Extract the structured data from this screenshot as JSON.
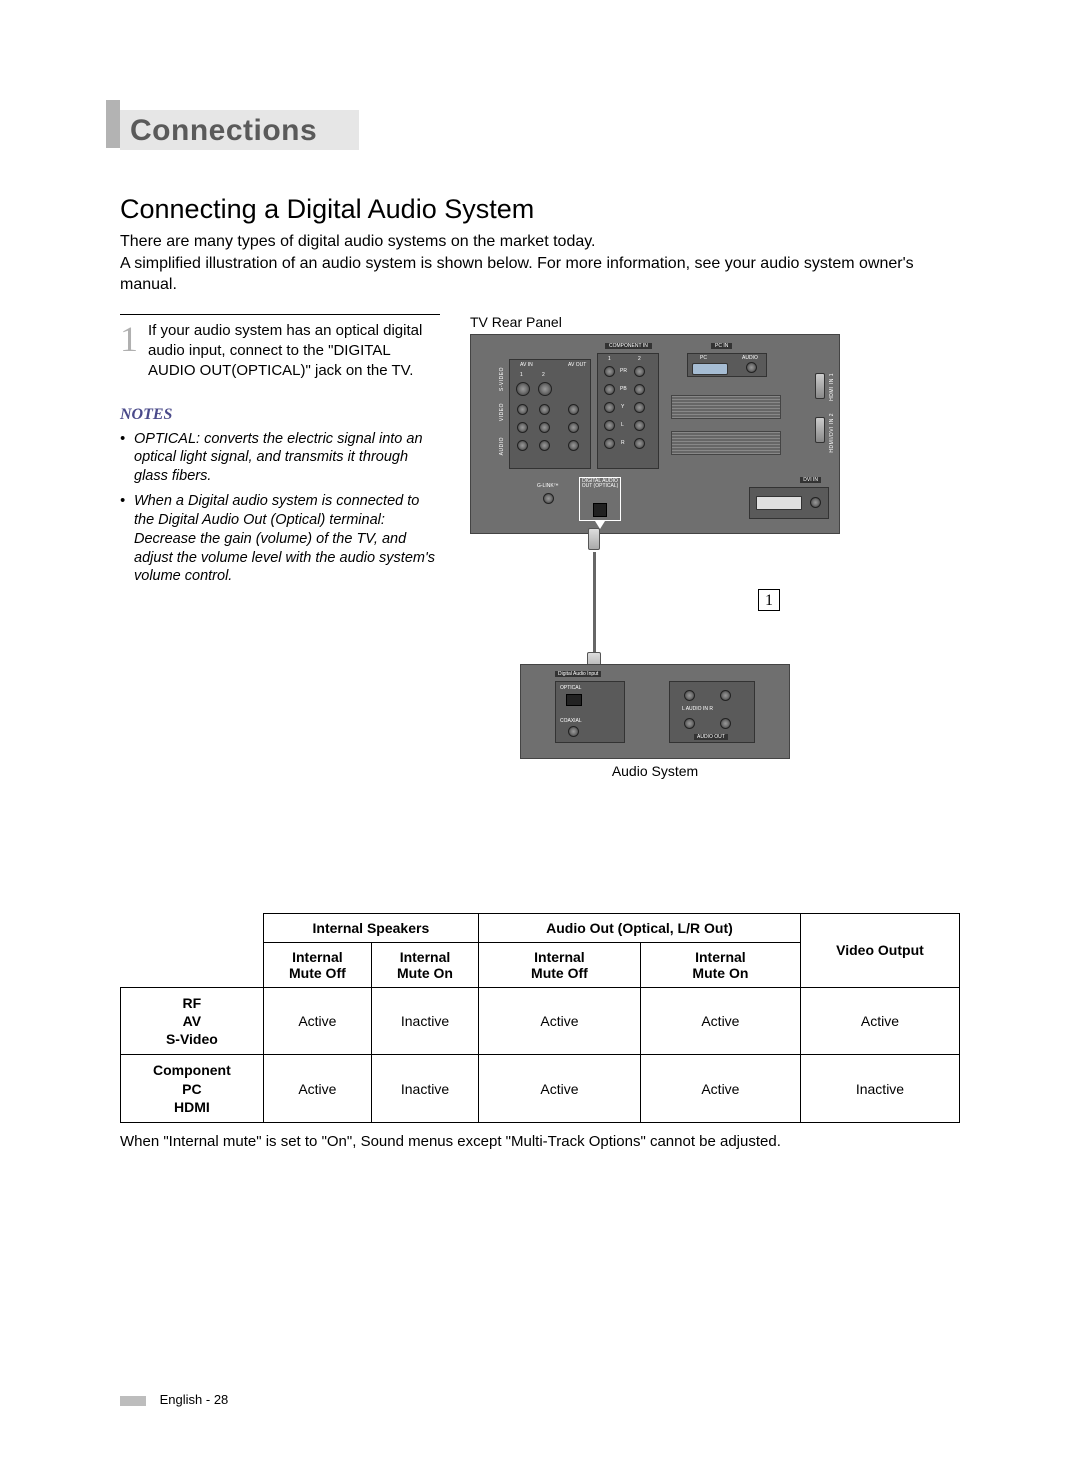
{
  "section_title": "Connections",
  "heading": "Connecting a Digital Audio System",
  "intro": [
    "There are many types of digital audio systems on the market today.",
    "A simplified illustration of an audio system is shown below. For more information, see your audio system owner's manual."
  ],
  "step": {
    "num": "1",
    "text": "If your audio system has an optical digital audio input, connect to the \"DIGITAL AUDIO OUT(OPTICAL)\" jack on the TV."
  },
  "notes_heading": "NOTES",
  "notes": [
    "OPTICAL: converts the electric signal into an optical light signal, and transmits it through glass fibers.",
    "When a Digital audio system is connected to the Digital Audio Out (Optical) terminal: Decrease the gain (volume) of the TV, and adjust the volume level with the audio system's volume control."
  ],
  "captions": {
    "tv_panel": "TV Rear Panel",
    "audio_system": "Audio System"
  },
  "diagram": {
    "callout_num": "1",
    "panel_bg": "#6f6f6f",
    "tv_labels": {
      "component_in": "COMPONENT IN",
      "pc_in": "PC IN",
      "pc": "PC",
      "audio": "AUDIO",
      "av_in": "AV IN",
      "av_out": "AV OUT",
      "one": "1",
      "two": "2",
      "video": "VIDEO",
      "s_video": "S-VIDEO",
      "audio_side": "AUDIO",
      "l": "L",
      "r": "R",
      "pb": "PB",
      "pr": "PR",
      "y": "Y",
      "glink": "G-LINK™",
      "digital_audio_out": "DIGITAL AUDIO OUT (OPTICAL)",
      "hdmi1": "HDMI IN 1",
      "hdmi2": "HDMI/DVI IN 2",
      "dvi_in": "DVI IN"
    },
    "as_labels": {
      "dai": "Digital Audio Input",
      "optical": "OPTICAL",
      "coaxial": "COAXIAL",
      "l_audio_r": "L  AUDIO IN  R",
      "audio_out": "AUDIO OUT"
    }
  },
  "table": {
    "group1": "Internal Speakers",
    "group2": "Audio Out (Optical, L/R Out)",
    "col_video": "Video Output",
    "sub": {
      "mute_off": "Internal Mute Off",
      "mute_on": "Internal Mute On"
    },
    "rows": [
      {
        "label": "RF\nAV\nS-Video",
        "c1": "Active",
        "c2": "Inactive",
        "c3": "Active",
        "c4": "Active",
        "c5": "Active"
      },
      {
        "label": "Component\nPC\nHDMI",
        "c1": "Active",
        "c2": "Inactive",
        "c3": "Active",
        "c4": "Active",
        "c5": "Inactive"
      }
    ]
  },
  "table_note": "When \"Internal mute\" is set to \"On\", Sound menus except \"Multi-Track Options\" cannot be adjusted.",
  "footer": "English - 28"
}
